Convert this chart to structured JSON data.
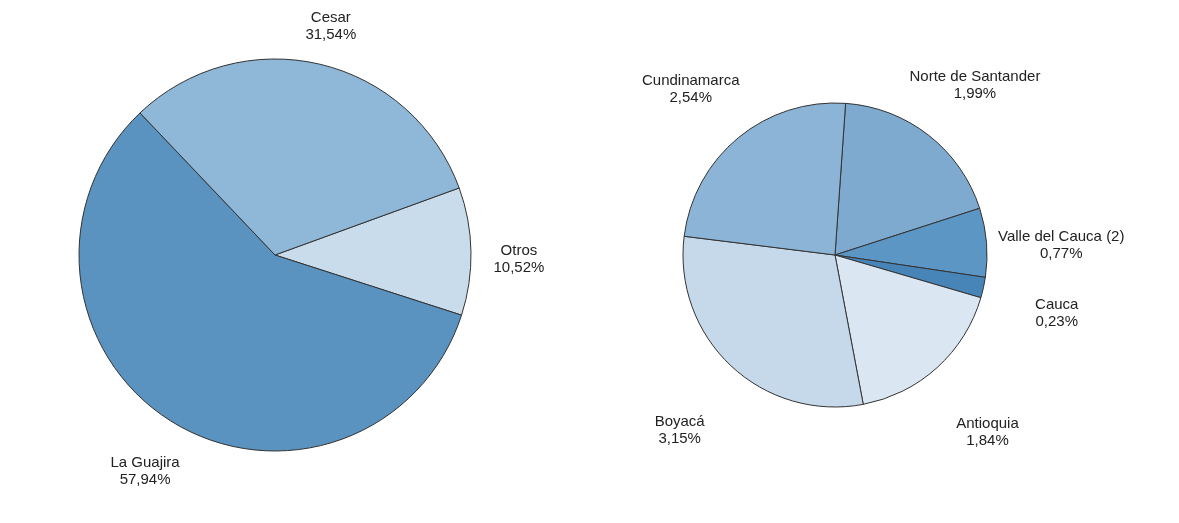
{
  "chart_data": [
    {
      "type": "pie",
      "categories": [
        "Otros",
        "La Guajira",
        "Cesar"
      ],
      "values": [
        10.52,
        57.94,
        31.54
      ],
      "colors": [
        "#c9dcec",
        "#5a93bf",
        "#8fb7d7"
      ],
      "value_labels": [
        "10,52%",
        "57,94%",
        "31,54%"
      ]
    },
    {
      "type": "pie",
      "categories": [
        "Norte de Santander",
        "Valle del Cauca (2)",
        "Cauca",
        "Antioquia",
        "Boyacá",
        "Cundinamarca"
      ],
      "values": [
        1.99,
        0.77,
        0.23,
        1.84,
        3.15,
        2.54
      ],
      "colors": [
        "#7eaad0",
        "#5c96c4",
        "#4785b8",
        "#dae7f2",
        "#c6d9ea",
        "#8cb4d6"
      ],
      "value_labels": [
        "1,99%",
        "0,77%",
        "0,23%",
        "1,84%",
        "3,15%",
        "2,54%"
      ]
    }
  ]
}
